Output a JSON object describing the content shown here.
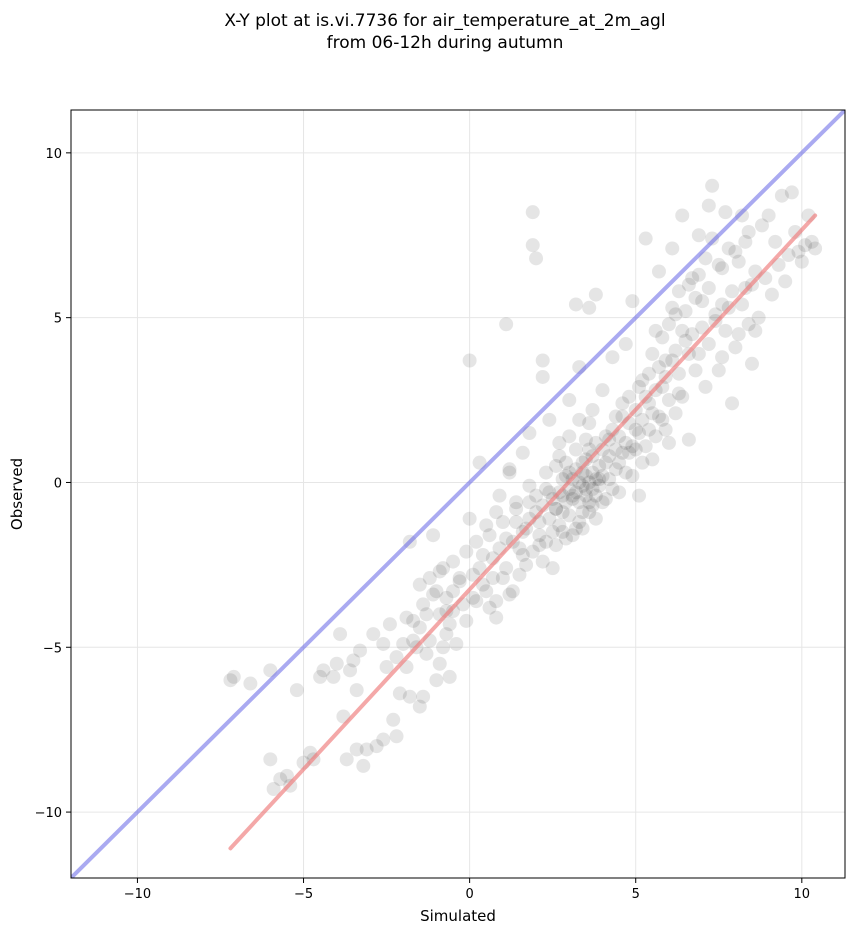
{
  "chart_data": {
    "type": "scatter",
    "title": [
      "X-Y plot at is.vi.7736 for air_temperature_at_2m_agl",
      "from 06-12h during autumn"
    ],
    "xlabel": "Simulated",
    "ylabel": "Observed",
    "xlim": [
      -12.0,
      11.3
    ],
    "ylim": [
      -12.0,
      11.3
    ],
    "x_ticks": [
      -10,
      -5,
      0,
      5,
      10
    ],
    "y_ticks": [
      -10,
      -5,
      0,
      5,
      10
    ],
    "x_tick_labels": [
      "−10",
      "−5",
      "0",
      "5",
      "10"
    ],
    "y_tick_labels": [
      "−10",
      "−5",
      "0",
      "5",
      "10"
    ],
    "grid": true,
    "colors": {
      "points": "#000000",
      "identity_line": "#6464e6",
      "fit_line": "#ee7a7a"
    },
    "identity_line": {
      "x": [
        -12.0,
        11.3
      ],
      "y": [
        -12.0,
        11.3
      ]
    },
    "fit_line": {
      "x": [
        -7.2,
        10.4
      ],
      "y": [
        -11.1,
        8.1
      ]
    },
    "points": [
      [
        -7.2,
        -6.0
      ],
      [
        -7.1,
        -5.9
      ],
      [
        -6.6,
        -6.1
      ],
      [
        -6.0,
        -5.7
      ],
      [
        -6.0,
        -8.4
      ],
      [
        -5.9,
        -9.3
      ],
      [
        -5.7,
        -9.0
      ],
      [
        -5.5,
        -8.9
      ],
      [
        -5.4,
        -9.2
      ],
      [
        -5.2,
        -6.3
      ],
      [
        -5.0,
        -8.5
      ],
      [
        -4.8,
        -8.2
      ],
      [
        -4.7,
        -8.4
      ],
      [
        -4.5,
        -5.9
      ],
      [
        -4.4,
        -5.7
      ],
      [
        -4.1,
        -5.9
      ],
      [
        -4.0,
        -5.5
      ],
      [
        -3.9,
        -4.6
      ],
      [
        -3.8,
        -7.1
      ],
      [
        -3.7,
        -8.4
      ],
      [
        -3.6,
        -5.7
      ],
      [
        -3.5,
        -5.4
      ],
      [
        -3.4,
        -8.1
      ],
      [
        -3.4,
        -6.3
      ],
      [
        -3.3,
        -5.1
      ],
      [
        -3.2,
        -8.6
      ],
      [
        -3.1,
        -8.1
      ],
      [
        -2.9,
        -4.6
      ],
      [
        -2.8,
        -8.0
      ],
      [
        -2.6,
        -7.8
      ],
      [
        -2.5,
        -5.6
      ],
      [
        -2.4,
        -4.3
      ],
      [
        -2.3,
        -7.2
      ],
      [
        -2.2,
        -7.7
      ],
      [
        -2.1,
        -6.4
      ],
      [
        -2.0,
        -4.9
      ],
      [
        -1.9,
        -4.1
      ],
      [
        -1.8,
        -1.8
      ],
      [
        -1.8,
        -6.5
      ],
      [
        -1.7,
        -4.8
      ],
      [
        -1.6,
        -5.0
      ],
      [
        -1.5,
        -4.4
      ],
      [
        -1.5,
        -6.8
      ],
      [
        -1.4,
        -3.7
      ],
      [
        -1.4,
        -6.5
      ],
      [
        -1.3,
        -5.2
      ],
      [
        -1.2,
        -2.9
      ],
      [
        -1.2,
        -4.8
      ],
      [
        -1.1,
        -1.6
      ],
      [
        -1.0,
        -3.3
      ],
      [
        -1.0,
        -6.0
      ],
      [
        -0.9,
        -4.0
      ],
      [
        -0.9,
        -5.5
      ],
      [
        -0.8,
        -2.6
      ],
      [
        -0.8,
        -5.0
      ],
      [
        -0.7,
        -3.9
      ],
      [
        -0.7,
        -4.6
      ],
      [
        -0.6,
        -5.9
      ],
      [
        -0.5,
        -2.4
      ],
      [
        -0.5,
        -3.3
      ],
      [
        -0.4,
        -4.9
      ],
      [
        -0.3,
        -2.9
      ],
      [
        -0.2,
        -3.7
      ],
      [
        -0.1,
        -2.1
      ],
      [
        0.0,
        -1.1
      ],
      [
        0.0,
        3.7
      ],
      [
        0.1,
        -3.5
      ],
      [
        0.2,
        -1.8
      ],
      [
        0.3,
        0.6
      ],
      [
        0.3,
        -2.6
      ],
      [
        0.4,
        -3.1
      ],
      [
        0.5,
        -1.3
      ],
      [
        0.6,
        -3.8
      ],
      [
        0.7,
        -2.3
      ],
      [
        0.8,
        -0.9
      ],
      [
        0.8,
        -4.1
      ],
      [
        0.9,
        -0.4
      ],
      [
        1.0,
        -2.9
      ],
      [
        1.1,
        4.8
      ],
      [
        1.1,
        -1.7
      ],
      [
        1.2,
        0.3
      ],
      [
        1.3,
        -3.3
      ],
      [
        1.4,
        -0.8
      ],
      [
        1.5,
        -2.0
      ],
      [
        1.6,
        0.9
      ],
      [
        1.7,
        -1.4
      ],
      [
        1.8,
        1.5
      ],
      [
        1.8,
        -0.6
      ],
      [
        1.9,
        8.2
      ],
      [
        1.9,
        7.2
      ],
      [
        2.0,
        6.8
      ],
      [
        2.1,
        -1.9
      ],
      [
        2.2,
        3.7
      ],
      [
        2.2,
        3.2
      ],
      [
        2.3,
        -0.2
      ],
      [
        2.4,
        1.9
      ],
      [
        2.5,
        -2.6
      ],
      [
        2.6,
        -0.8
      ],
      [
        2.7,
        1.2
      ],
      [
        2.8,
        -1.5
      ],
      [
        2.9,
        0.2
      ],
      [
        3.0,
        2.5
      ],
      [
        3.1,
        -0.4
      ],
      [
        3.2,
        5.4
      ],
      [
        3.3,
        -1.2
      ],
      [
        3.3,
        3.5
      ],
      [
        3.4,
        0.6
      ],
      [
        3.5,
        -0.2
      ],
      [
        3.6,
        5.3
      ],
      [
        3.6,
        1.8
      ],
      [
        3.7,
        -0.7
      ],
      [
        3.8,
        5.7
      ],
      [
        3.9,
        0.1
      ],
      [
        4.0,
        2.8
      ],
      [
        4.1,
        -0.5
      ],
      [
        4.2,
        1.3
      ],
      [
        4.3,
        3.8
      ],
      [
        4.4,
        0.4
      ],
      [
        4.5,
        -0.3
      ],
      [
        4.6,
        2.0
      ],
      [
        4.7,
        4.2
      ],
      [
        4.8,
        0.9
      ],
      [
        4.9,
        5.5
      ],
      [
        5.0,
        1.6
      ],
      [
        5.1,
        -0.4
      ],
      [
        5.2,
        3.1
      ],
      [
        5.3,
        7.4
      ],
      [
        5.4,
        2.4
      ],
      [
        5.5,
        0.7
      ],
      [
        5.6,
        4.6
      ],
      [
        5.7,
        6.4
      ],
      [
        5.8,
        1.9
      ],
      [
        5.9,
        3.7
      ],
      [
        6.0,
        1.2
      ],
      [
        6.1,
        7.1
      ],
      [
        6.2,
        5.1
      ],
      [
        6.3,
        2.7
      ],
      [
        6.4,
        8.1
      ],
      [
        6.5,
        4.3
      ],
      [
        6.6,
        1.3
      ],
      [
        6.7,
        6.2
      ],
      [
        6.8,
        3.4
      ],
      [
        6.9,
        7.5
      ],
      [
        7.0,
        5.5
      ],
      [
        7.1,
        2.9
      ],
      [
        7.2,
        8.4
      ],
      [
        7.3,
        9.0
      ],
      [
        7.4,
        4.9
      ],
      [
        7.5,
        6.6
      ],
      [
        7.6,
        3.8
      ],
      [
        7.7,
        8.2
      ],
      [
        7.8,
        5.3
      ],
      [
        7.9,
        2.4
      ],
      [
        8.0,
        7.0
      ],
      [
        8.1,
        4.5
      ],
      [
        8.2,
        8.1
      ],
      [
        8.3,
        5.9
      ],
      [
        8.4,
        7.6
      ],
      [
        8.5,
        3.6
      ],
      [
        8.6,
        6.4
      ],
      [
        8.7,
        5.0
      ],
      [
        8.8,
        7.8
      ],
      [
        8.9,
        6.2
      ],
      [
        9.0,
        8.1
      ],
      [
        9.1,
        5.7
      ],
      [
        9.2,
        7.3
      ],
      [
        9.3,
        6.6
      ],
      [
        9.4,
        8.7
      ],
      [
        9.5,
        6.1
      ],
      [
        9.7,
        8.8
      ],
      [
        9.9,
        7.0
      ],
      [
        10.0,
        6.7
      ],
      [
        10.1,
        7.2
      ],
      [
        10.2,
        8.1
      ],
      [
        10.3,
        7.3
      ],
      [
        9.6,
        6.9
      ],
      [
        9.8,
        7.6
      ],
      [
        10.4,
        7.1
      ],
      [
        8.4,
        4.8
      ],
      [
        7.6,
        5.4
      ],
      [
        1.2,
        0.4
      ],
      [
        1.4,
        -1.2
      ],
      [
        1.6,
        -2.2
      ],
      [
        1.8,
        -0.1
      ],
      [
        2.0,
        -0.9
      ],
      [
        2.1,
        -1.6
      ],
      [
        2.2,
        -2.4
      ],
      [
        2.3,
        0.3
      ],
      [
        2.4,
        -1.1
      ],
      [
        2.5,
        -0.5
      ],
      [
        2.6,
        -1.9
      ],
      [
        2.6,
        0.5
      ],
      [
        2.7,
        -0.3
      ],
      [
        2.7,
        -1.3
      ],
      [
        2.8,
        0.1
      ],
      [
        2.8,
        -0.9
      ],
      [
        2.9,
        -0.6
      ],
      [
        2.9,
        -1.7
      ],
      [
        3.0,
        0.3
      ],
      [
        3.0,
        -0.2
      ],
      [
        3.0,
        -1.0
      ],
      [
        3.1,
        0.1
      ],
      [
        3.1,
        -0.5
      ],
      [
        3.2,
        0.4
      ],
      [
        3.2,
        -0.3
      ],
      [
        3.2,
        -1.4
      ],
      [
        3.3,
        0.0
      ],
      [
        3.3,
        -0.6
      ],
      [
        3.4,
        0.3
      ],
      [
        3.4,
        -0.1
      ],
      [
        3.4,
        -0.9
      ],
      [
        3.5,
        0.2
      ],
      [
        3.5,
        -0.4
      ],
      [
        3.5,
        0.7
      ],
      [
        3.6,
        0.0
      ],
      [
        3.6,
        -0.6
      ],
      [
        3.6,
        1.0
      ],
      [
        3.7,
        0.3
      ],
      [
        3.7,
        -0.2
      ],
      [
        3.7,
        0.8
      ],
      [
        3.8,
        0.1
      ],
      [
        3.8,
        -0.4
      ],
      [
        3.8,
        1.2
      ],
      [
        3.9,
        0.5
      ],
      [
        3.9,
        -0.1
      ],
      [
        4.0,
        0.2
      ],
      [
        4.0,
        1.0
      ],
      [
        4.0,
        -0.6
      ],
      [
        4.1,
        0.6
      ],
      [
        4.1,
        1.4
      ],
      [
        4.2,
        0.1
      ],
      [
        4.2,
        0.8
      ],
      [
        4.3,
        1.6
      ],
      [
        4.3,
        -0.2
      ],
      [
        4.4,
        1.0
      ],
      [
        4.4,
        2.0
      ],
      [
        4.5,
        0.6
      ],
      [
        4.5,
        1.4
      ],
      [
        4.6,
        0.9
      ],
      [
        4.6,
        2.4
      ],
      [
        4.7,
        1.2
      ],
      [
        4.7,
        0.3
      ],
      [
        4.8,
        1.8
      ],
      [
        4.8,
        2.6
      ],
      [
        4.9,
        1.1
      ],
      [
        4.9,
        0.2
      ],
      [
        5.0,
        2.2
      ],
      [
        5.0,
        1.0
      ],
      [
        5.1,
        1.5
      ],
      [
        5.1,
        2.9
      ],
      [
        5.2,
        0.6
      ],
      [
        5.2,
        1.9
      ],
      [
        5.3,
        2.6
      ],
      [
        5.3,
        1.1
      ],
      [
        5.4,
        3.3
      ],
      [
        5.4,
        1.6
      ],
      [
        5.5,
        2.1
      ],
      [
        5.5,
        3.9
      ],
      [
        5.6,
        1.4
      ],
      [
        5.6,
        2.8
      ],
      [
        5.7,
        3.5
      ],
      [
        5.7,
        2.0
      ],
      [
        5.8,
        4.4
      ],
      [
        5.8,
        2.9
      ],
      [
        5.9,
        1.6
      ],
      [
        5.9,
        3.2
      ],
      [
        6.0,
        4.8
      ],
      [
        6.0,
        2.5
      ],
      [
        6.1,
        3.7
      ],
      [
        6.1,
        5.3
      ],
      [
        6.2,
        2.1
      ],
      [
        6.2,
        4.0
      ],
      [
        6.3,
        5.8
      ],
      [
        6.3,
        3.3
      ],
      [
        6.4,
        4.6
      ],
      [
        6.4,
        2.6
      ],
      [
        6.5,
        5.2
      ],
      [
        6.6,
        3.9
      ],
      [
        6.6,
        6.0
      ],
      [
        6.7,
        4.5
      ],
      [
        6.8,
        5.6
      ],
      [
        6.9,
        3.9
      ],
      [
        6.9,
        6.3
      ],
      [
        7.0,
        4.7
      ],
      [
        7.1,
        6.8
      ],
      [
        7.2,
        4.2
      ],
      [
        7.2,
        5.9
      ],
      [
        7.3,
        7.4
      ],
      [
        7.4,
        5.1
      ],
      [
        7.5,
        3.4
      ],
      [
        7.6,
        6.5
      ],
      [
        7.7,
        4.6
      ],
      [
        7.8,
        7.1
      ],
      [
        7.9,
        5.8
      ],
      [
        8.0,
        4.1
      ],
      [
        8.1,
        6.7
      ],
      [
        8.2,
        5.4
      ],
      [
        8.3,
        7.3
      ],
      [
        8.5,
        6.0
      ],
      [
        8.6,
        4.6
      ],
      [
        -0.5,
        -3.9
      ],
      [
        -0.3,
        -3.0
      ],
      [
        -0.1,
        -4.2
      ],
      [
        0.1,
        -2.8
      ],
      [
        0.2,
        -3.6
      ],
      [
        0.4,
        -2.2
      ],
      [
        0.5,
        -3.3
      ],
      [
        0.6,
        -1.6
      ],
      [
        0.7,
        -2.9
      ],
      [
        0.8,
        -3.6
      ],
      [
        0.9,
        -2.0
      ],
      [
        1.0,
        -1.2
      ],
      [
        1.1,
        -2.6
      ],
      [
        1.2,
        -3.4
      ],
      [
        1.3,
        -1.8
      ],
      [
        1.4,
        -0.6
      ],
      [
        1.5,
        -2.8
      ],
      [
        1.6,
        -1.5
      ],
      [
        1.7,
        -2.5
      ],
      [
        1.8,
        -1.1
      ],
      [
        1.9,
        -2.1
      ],
      [
        2.0,
        -0.4
      ],
      [
        2.1,
        -1.2
      ],
      [
        2.2,
        -0.7
      ],
      [
        2.3,
        -1.8
      ],
      [
        2.4,
        -0.3
      ],
      [
        2.5,
        -1.5
      ],
      [
        2.6,
        -0.8
      ],
      [
        2.7,
        0.8
      ],
      [
        2.8,
        -0.4
      ],
      [
        2.9,
        0.6
      ],
      [
        3.0,
        1.4
      ],
      [
        3.1,
        -1.6
      ],
      [
        3.2,
        1.0
      ],
      [
        3.3,
        1.9
      ],
      [
        3.4,
        -1.4
      ],
      [
        3.5,
        1.3
      ],
      [
        3.6,
        -0.9
      ],
      [
        3.7,
        2.2
      ],
      [
        3.8,
        -1.1
      ],
      [
        -1.7,
        -4.2
      ],
      [
        -1.5,
        -3.1
      ],
      [
        -1.3,
        -4.0
      ],
      [
        -1.1,
        -3.4
      ],
      [
        -0.9,
        -2.7
      ],
      [
        -0.7,
        -3.5
      ],
      [
        -0.6,
        -4.3
      ],
      [
        -2.6,
        -4.9
      ],
      [
        -2.2,
        -5.3
      ],
      [
        -1.9,
        -5.6
      ]
    ]
  }
}
